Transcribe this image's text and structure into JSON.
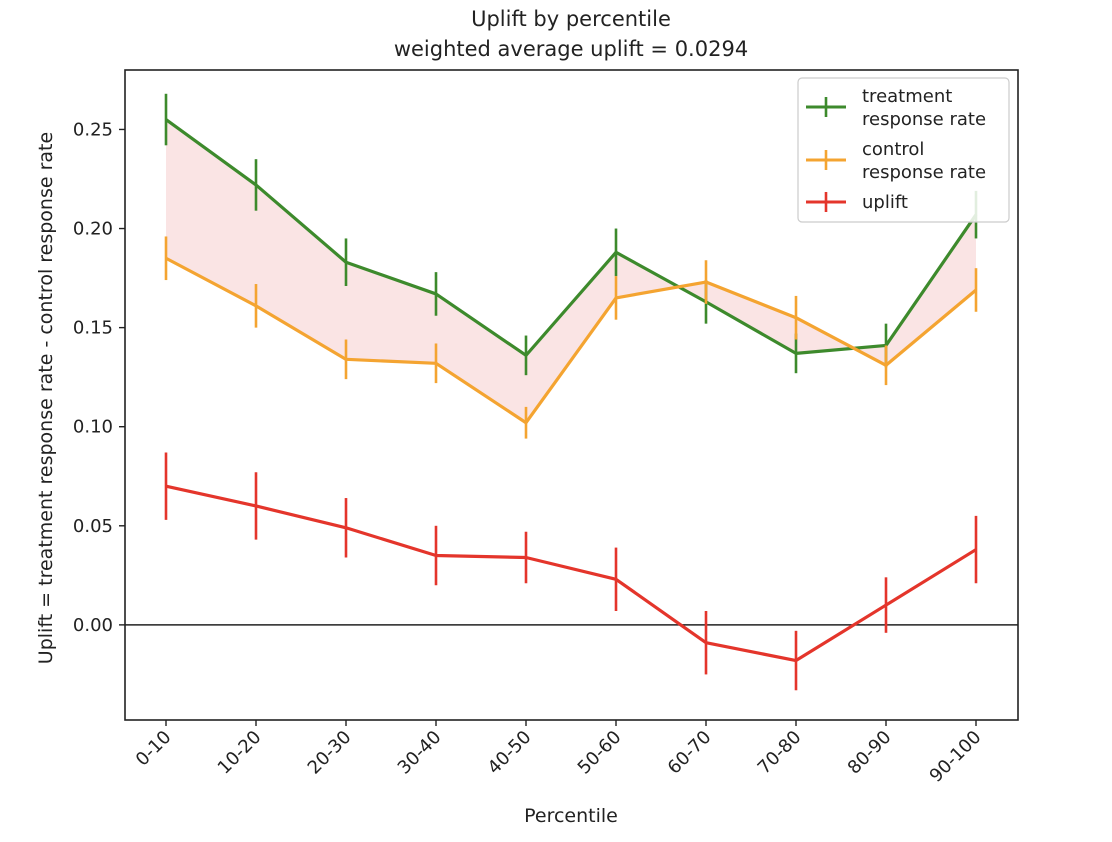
{
  "chart_data": {
    "type": "line",
    "title": "Uplift by percentile",
    "subtitle": "weighted average uplift = 0.0294",
    "xlabel": "Percentile",
    "ylabel": "Uplift = treatment response rate - control response rate",
    "categories": [
      "0-10",
      "10-20",
      "20-30",
      "30-40",
      "40-50",
      "50-60",
      "60-70",
      "70-80",
      "80-90",
      "90-100"
    ],
    "ylim": [
      -0.048,
      0.28
    ],
    "yticks": [
      0.0,
      0.05,
      0.1,
      0.15,
      0.2,
      0.25
    ],
    "ytick_labels": [
      "0.00",
      "0.05",
      "0.10",
      "0.15",
      "0.20",
      "0.25"
    ],
    "grid": false,
    "legend_position": "top-right",
    "reference_line_y": 0.0,
    "series": [
      {
        "name": "treatment\nresponse rate",
        "color": "#3d8a2c",
        "values": [
          0.255,
          0.222,
          0.183,
          0.167,
          0.136,
          0.188,
          0.163,
          0.137,
          0.141,
          0.207
        ],
        "error": [
          0.013,
          0.013,
          0.012,
          0.011,
          0.01,
          0.012,
          0.011,
          0.01,
          0.011,
          0.012
        ]
      },
      {
        "name": "control\nresponse rate",
        "color": "#f4a431",
        "values": [
          0.185,
          0.161,
          0.134,
          0.132,
          0.102,
          0.165,
          0.173,
          0.155,
          0.131,
          0.169
        ],
        "error": [
          0.011,
          0.011,
          0.01,
          0.01,
          0.008,
          0.011,
          0.011,
          0.011,
          0.01,
          0.011
        ]
      },
      {
        "name": "uplift",
        "color": "#e4352b",
        "values": [
          0.07,
          0.06,
          0.049,
          0.035,
          0.034,
          0.023,
          -0.009,
          -0.018,
          0.01,
          0.038
        ],
        "error": [
          0.017,
          0.017,
          0.015,
          0.015,
          0.013,
          0.016,
          0.016,
          0.015,
          0.014,
          0.017
        ]
      }
    ],
    "fill_between": {
      "upper": "treatment response rate",
      "lower": "control response rate",
      "color": "#f5c4c4"
    }
  }
}
